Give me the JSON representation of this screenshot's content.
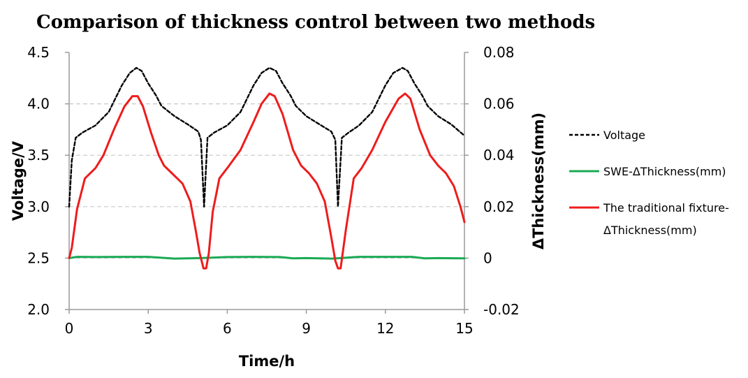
{
  "chart_data": {
    "type": "line",
    "title": "Comparison of thickness control between two methods",
    "xlabel": "Time/h",
    "ylabel": "Voltage/V",
    "y2label": "ΔThickness(mm)",
    "xlim": [
      0,
      15
    ],
    "ylim": [
      2.0,
      4.5
    ],
    "y2lim": [
      -0.02,
      0.08
    ],
    "xticks": [
      0,
      3,
      6,
      9,
      12,
      15
    ],
    "yticks": [
      "2.0",
      "2.5",
      "3.0",
      "3.5",
      "4.0",
      "4.5"
    ],
    "y2ticks": [
      "-0.02",
      "0",
      "0.02",
      "0.04",
      "0.06",
      "0.08"
    ],
    "grid": "horizontal-dashed",
    "legend_position": "right",
    "series": [
      {
        "name": "Voltage",
        "axis": "left",
        "color": "#000000",
        "style": "dashed",
        "x": [
          0,
          0.1,
          0.25,
          0.5,
          1.0,
          1.5,
          2.0,
          2.3,
          2.55,
          2.75,
          3.0,
          3.3,
          3.5,
          4.0,
          4.5,
          4.9,
          5.0,
          5.12,
          5.25,
          5.5,
          6.0,
          6.5,
          7.0,
          7.3,
          7.6,
          7.85,
          8.1,
          8.4,
          8.6,
          9.0,
          9.5,
          9.95,
          10.1,
          10.2,
          10.35,
          10.6,
          11.0,
          11.5,
          12.0,
          12.3,
          12.65,
          12.85,
          13.1,
          13.4,
          13.6,
          14.0,
          14.5,
          15.0
        ],
        "values": [
          3.0,
          3.45,
          3.67,
          3.72,
          3.79,
          3.92,
          4.18,
          4.3,
          4.35,
          4.32,
          4.2,
          4.08,
          3.98,
          3.88,
          3.8,
          3.73,
          3.65,
          3.0,
          3.67,
          3.72,
          3.79,
          3.92,
          4.18,
          4.3,
          4.35,
          4.32,
          4.2,
          4.08,
          3.98,
          3.88,
          3.8,
          3.73,
          3.65,
          3.0,
          3.67,
          3.72,
          3.79,
          3.92,
          4.18,
          4.3,
          4.35,
          4.32,
          4.2,
          4.08,
          3.98,
          3.88,
          3.8,
          3.69
        ]
      },
      {
        "name": "SWE-ΔThickness(mm)",
        "axis": "right",
        "color": "#1aaa55",
        "style": "solid",
        "x": [
          0,
          0.3,
          1.0,
          2.0,
          3.0,
          4.0,
          5.0,
          6.0,
          7.0,
          8.0,
          8.5,
          9.0,
          10.0,
          11.0,
          12.0,
          13.0,
          13.5,
          14.0,
          15.0
        ],
        "values": [
          0.0,
          0.0005,
          0.0004,
          0.0005,
          0.0005,
          -0.0002,
          0.0,
          0.0004,
          0.0005,
          0.0004,
          -0.0001,
          0.0,
          -0.0002,
          0.0005,
          0.0005,
          0.0005,
          -0.0001,
          0.0,
          -0.0001
        ]
      },
      {
        "name": "The traditional fixture-ΔThickness(mm)",
        "axis": "right",
        "color": "#ee1c1c",
        "style": "solid",
        "x": [
          0,
          0.1,
          0.3,
          0.6,
          1.0,
          1.3,
          1.7,
          2.1,
          2.4,
          2.6,
          2.8,
          3.1,
          3.4,
          3.6,
          3.9,
          4.3,
          4.6,
          4.8,
          4.95,
          5.1,
          5.2,
          5.3,
          5.45,
          5.7,
          6.0,
          6.5,
          7.0,
          7.3,
          7.6,
          7.8,
          8.1,
          8.5,
          8.8,
          9.1,
          9.4,
          9.7,
          9.95,
          10.1,
          10.2,
          10.3,
          10.5,
          10.8,
          11.1,
          11.5,
          12.0,
          12.5,
          12.75,
          12.95,
          13.3,
          13.7,
          14.0,
          14.3,
          14.6,
          14.85,
          15.0
        ],
        "values": [
          0.0,
          0.004,
          0.019,
          0.031,
          0.035,
          0.04,
          0.05,
          0.059,
          0.063,
          0.063,
          0.059,
          0.049,
          0.04,
          0.036,
          0.033,
          0.029,
          0.022,
          0.011,
          0.002,
          -0.004,
          -0.004,
          0.002,
          0.018,
          0.031,
          0.035,
          0.042,
          0.053,
          0.06,
          0.064,
          0.063,
          0.056,
          0.042,
          0.036,
          0.033,
          0.029,
          0.022,
          0.008,
          -0.001,
          -0.004,
          -0.004,
          0.011,
          0.031,
          0.035,
          0.042,
          0.053,
          0.062,
          0.064,
          0.062,
          0.05,
          0.04,
          0.036,
          0.033,
          0.028,
          0.02,
          0.014
        ]
      }
    ]
  }
}
